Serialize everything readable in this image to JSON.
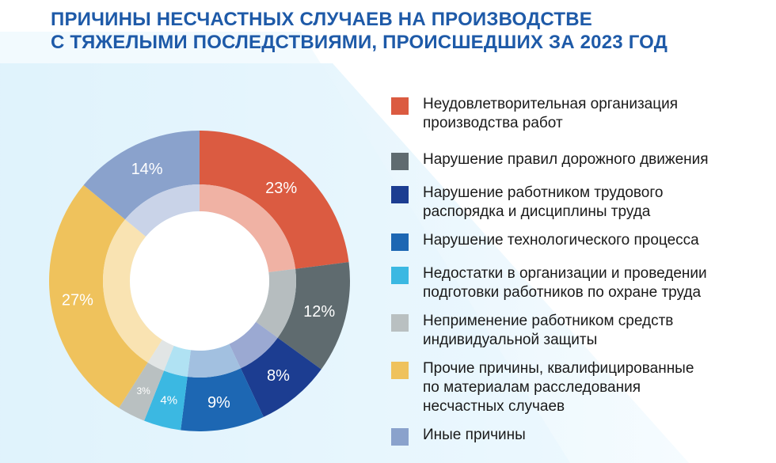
{
  "title_lines": [
    "ПРИЧИНЫ НЕСЧАСТНЫХ СЛУЧАЕВ НА ПРОИЗВОДСТВЕ",
    "С ТЯЖЕЛЫМИ ПОСЛЕДСТВИЯМИ, ПРОИСШЕДШИХ ЗА 2023 ГОД"
  ],
  "colors": {
    "title": "#1e5aa8",
    "backdrop_light": "#eaf6fd",
    "backdrop_dark": "#c9e8f8"
  },
  "chart_data": {
    "type": "pie",
    "variant": "donut",
    "title": "ПРИЧИНЫ НЕСЧАСТНЫХ СЛУЧАЕВ НА ПРОИЗВОДСТВЕ С ТЯЖЕЛЫМИ ПОСЛЕДСТВИЯМИ, ПРОИСШЕДШИХ ЗА 2023 ГОД",
    "legend_placement": "right",
    "slices": [
      {
        "label": "Неудовлетворительная организация\nпроизводства работ",
        "value": 23,
        "value_label": "23%",
        "color": "#db5b41",
        "inner_color": "#f0b2a4"
      },
      {
        "label": "Нарушение правил дорожного движения",
        "value": 12,
        "value_label": "12%",
        "color": "#5f6b6f",
        "inner_color": "#b6bdbf"
      },
      {
        "label": "Нарушение работником трудового\nраспорядка и  дисциплины труда",
        "value": 8,
        "value_label": "8%",
        "color": "#1c3d91",
        "inner_color": "#9ba9d2"
      },
      {
        "label": "Нарушение технологического процесса",
        "value": 9,
        "value_label": "9%",
        "color": "#1d67b3",
        "inner_color": "#a2c0e0"
      },
      {
        "label": "Недостатки в организации и проведении\nподготовки работников по охране труда",
        "value": 4,
        "value_label": "4%",
        "color": "#3bb8e2",
        "inner_color": "#b0e2f3"
      },
      {
        "label": "Неприменение работником средств\nиндивидуальной защиты",
        "value": 3,
        "value_label": "3%",
        "color": "#b9c0c1",
        "inner_color": "#e1e5e5"
      },
      {
        "label": "Прочие причины, квалифицированные\nпо материалам расследования\nнесчастных случаев",
        "value": 27,
        "value_label": "27%",
        "color": "#efc25c",
        "inner_color": "#f9e3b2"
      },
      {
        "label": "Иные причины",
        "value": 14,
        "value_label": "14%",
        "color": "#8aa2cc",
        "inner_color": "#c9d3e8"
      }
    ]
  }
}
